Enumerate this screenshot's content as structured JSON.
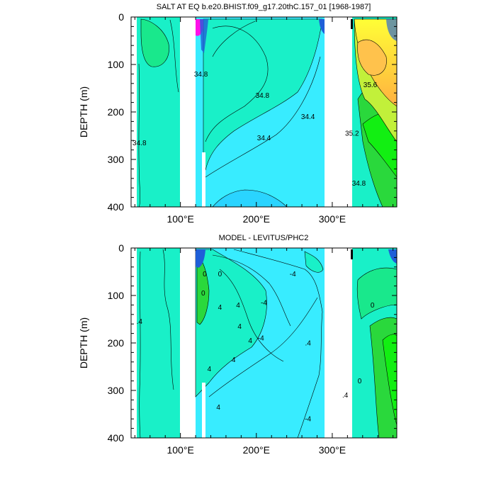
{
  "chart_data": [
    {
      "type": "heatmap",
      "title": "SALT AT EQ b.e20.BHIST.f09_g17.20thC.157_01 [1968-1987]",
      "ylabel": "DEPTH (m)",
      "xlim": [
        35,
        385
      ],
      "ylim": [
        400,
        0
      ],
      "x_ticks": [
        100,
        200,
        300
      ],
      "x_tick_labels": [
        "100°E",
        "200°E",
        "300°E"
      ],
      "y_ticks": [
        0,
        100,
        200,
        300,
        400
      ],
      "y_tick_labels": [
        "0",
        "100",
        "200",
        "300",
        "400"
      ],
      "contour_labels": [
        {
          "text": "34.8",
          "x": 46,
          "y": 270
        },
        {
          "text": "34.8",
          "x": 127,
          "y": 125
        },
        {
          "text": "34.8",
          "x": 208,
          "y": 170
        },
        {
          "text": "34.4",
          "x": 210,
          "y": 260
        },
        {
          "text": "34.4",
          "x": 268,
          "y": 215
        },
        {
          "text": "35.6",
          "x": 350,
          "y": 148
        },
        {
          "text": "35.2",
          "x": 326,
          "y": 250
        },
        {
          "text": "34.8",
          "x": 335,
          "y": 355
        }
      ],
      "colors": {
        "cyan": "#38ecff",
        "aqua_green": "#19f0c8",
        "green_aqua": "#19e88c",
        "green": "#2ad83c",
        "bright_green": "#12ef12",
        "yellow_green": "#c2f03a",
        "yellow": "#ffff36",
        "orange": "#ffc24c",
        "blue": "#1f5fd8",
        "magenta": "#ff10e8"
      }
    },
    {
      "type": "heatmap",
      "title": "MODEL - LEVITUS/PHC2",
      "ylabel": "DEPTH (m)",
      "xlim": [
        35,
        385
      ],
      "ylim": [
        400,
        0
      ],
      "x_ticks": [
        100,
        200,
        300
      ],
      "x_tick_labels": [
        "100°E",
        "200°E",
        "300°E"
      ],
      "y_ticks": [
        0,
        100,
        200,
        300,
        400
      ],
      "y_tick_labels": [
        "0",
        "100",
        "200",
        "300",
        "400"
      ],
      "contour_labels": [
        {
          "text": ".4",
          "x": 46,
          "y": 160
        },
        {
          "text": "0",
          "x": 132,
          "y": 60
        },
        {
          "text": "0",
          "x": 152,
          "y": 60
        },
        {
          "text": "0",
          "x": 130,
          "y": 100
        },
        {
          "text": "4",
          "x": 152,
          "y": 130
        },
        {
          "text": "4",
          "x": 176,
          "y": 125
        },
        {
          "text": "-4",
          "x": 210,
          "y": 120
        },
        {
          "text": "-4",
          "x": 248,
          "y": 60
        },
        {
          "text": "4",
          "x": 178,
          "y": 170
        },
        {
          "text": "4",
          "x": 192,
          "y": 200
        },
        {
          "text": "-4",
          "x": 206,
          "y": 195
        },
        {
          "text": "4",
          "x": 170,
          "y": 240
        },
        {
          "text": "4",
          "x": 138,
          "y": 260
        },
        {
          "text": "4",
          "x": 150,
          "y": 340
        },
        {
          "text": ".4",
          "x": 268,
          "y": 205
        },
        {
          "text": "-4",
          "x": 268,
          "y": 365
        },
        {
          "text": "0",
          "x": 353,
          "y": 125
        },
        {
          "text": "0",
          "x": 336,
          "y": 285
        },
        {
          "text": ".4",
          "x": 317,
          "y": 315
        }
      ],
      "colors": {
        "cyan": "#38ecff",
        "aqua_green": "#19f0c8",
        "green_aqua": "#19e88c",
        "green": "#2ad83c",
        "bright_green": "#12ef12",
        "blue": "#1f5fd8"
      }
    }
  ]
}
